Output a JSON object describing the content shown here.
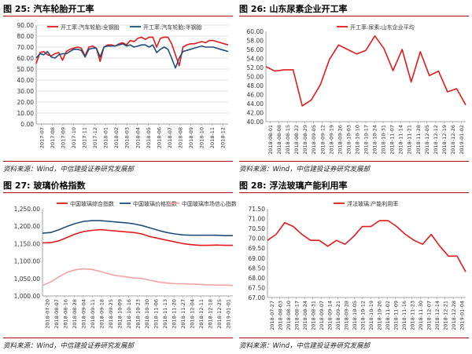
{
  "figures": [
    {
      "number": "图 25:",
      "title": "汽车轮胎开工率",
      "source": "资料来源：Wind，中信建投证券研究发展部"
    },
    {
      "number": "图 26:",
      "title": "山东尿素企业开工率",
      "source": "资料来源：Wind，中信建投证券研究发展部"
    },
    {
      "number": "图 27:",
      "title": "玻璃价格指数",
      "source": "资料来源：Wind，中信建投证券研究发展部"
    },
    {
      "number": "图 28:",
      "title": "浮法玻璃产能利用率",
      "source": "资料来源：Wind，中信建投证券研究发展部"
    }
  ],
  "colors": {
    "red": "#e31a1c",
    "navy": "#1f4e79",
    "pink": "#f4a3a3",
    "grid": "#d9d9d9",
    "rule": "#b8000c"
  },
  "chart_data": [
    {
      "type": "line",
      "title": "",
      "ylim": [
        0,
        90
      ],
      "yticks": [
        "0.00",
        "10.00",
        "20.00",
        "30.00",
        "40.00",
        "50.00",
        "60.00",
        "70.00",
        "80.00",
        "90.00"
      ],
      "ytick_values": [
        0,
        10,
        20,
        30,
        40,
        50,
        60,
        70,
        80,
        90
      ],
      "xticks": [
        "2017-07",
        "2017-08",
        "2017-09",
        "2017-10",
        "2017-11",
        "2017-12",
        "2018-01",
        "2018-02",
        "2018-03",
        "2018-04",
        "2018-05",
        "2018-06",
        "2018-07",
        "2018-08",
        "2018-09",
        "2018-10",
        "2018-11",
        "2018-12"
      ],
      "legend": "top",
      "grid": true,
      "series": [
        {
          "name": "开工率:汽车轮胎:全钢胎",
          "color": "#e31a1c",
          "values": [
            55,
            65,
            66,
            63,
            62,
            64,
            65,
            58,
            66,
            68,
            69,
            70,
            69,
            62,
            70,
            71,
            69,
            57,
            70,
            72,
            72,
            71,
            73,
            74,
            72,
            76,
            75,
            78,
            79,
            77,
            79,
            79,
            70,
            78,
            79,
            79,
            73,
            63,
            53,
            70,
            72,
            73,
            73,
            74,
            75,
            74,
            76,
            76,
            75,
            74,
            73,
            72
          ]
        },
        {
          "name": "开工率:汽车轮胎:半钢胎",
          "color": "#1f4e79",
          "values": [
            60,
            64,
            63,
            66,
            61,
            60,
            63,
            64,
            64,
            66,
            68,
            68,
            67,
            61,
            68,
            69,
            69,
            61,
            70,
            71,
            71,
            71,
            72,
            73,
            71,
            72,
            70,
            71,
            72,
            72,
            70,
            72,
            65,
            68,
            70,
            68,
            60,
            51,
            60,
            66,
            67,
            68,
            69,
            70,
            71,
            70,
            70,
            70,
            69,
            68,
            67,
            66
          ]
        }
      ]
    },
    {
      "type": "line",
      "title": "",
      "ylim": [
        40,
        60
      ],
      "yticks": [
        "40.00",
        "42.00",
        "44.00",
        "46.00",
        "48.00",
        "50.00",
        "52.00",
        "54.00",
        "56.00",
        "58.00",
        "60.00"
      ],
      "ytick_values": [
        40,
        42,
        44,
        46,
        48,
        50,
        52,
        54,
        56,
        58,
        60
      ],
      "xticks": [
        "2018-08-01",
        "2018-08-08",
        "2018-08-15",
        "2018-08-22",
        "2018-08-29",
        "2018-09-05",
        "2018-09-12",
        "2018-09-19",
        "2018-09-26",
        "2018-10-03",
        "2018-10-10",
        "2018-10-17",
        "2018-10-24",
        "2018-10-31",
        "2018-11-07",
        "2018-11-14",
        "2018-11-21",
        "2018-11-28",
        "2018-12-05",
        "2018-12-12",
        "2018-12-19",
        "2018-12-26",
        "2019-01-02"
      ],
      "legend": "top",
      "grid": false,
      "series": [
        {
          "name": "开工率:尿素:山东企业平均",
          "color": "#e31a1c",
          "values": [
            52.2,
            51.2,
            51.5,
            51.5,
            43.5,
            44.8,
            48.2,
            53.8,
            57.0,
            56.0,
            55.0,
            55.8,
            59.0,
            56.2,
            51.3,
            56.0,
            48.8,
            55.5,
            50.2,
            51.2,
            46.6,
            47.3,
            43.7
          ]
        }
      ]
    },
    {
      "type": "line",
      "title": "",
      "ylim": [
        1000,
        1250
      ],
      "yticks": [
        "1,000.00",
        "1,050.00",
        "1,100.00",
        "1,150.00",
        "1,200.00",
        "1,250.00"
      ],
      "ytick_values": [
        1000,
        1050,
        1100,
        1150,
        1200,
        1250
      ],
      "xticks": [
        "2018-07-20",
        "2018-08-07",
        "2018-08-16",
        "2018-08-28",
        "2018-09-04",
        "2018-09-11",
        "2018-09-18",
        "2018-09-25",
        "2018-10-09",
        "2018-10-16",
        "2018-10-23",
        "2018-10-30",
        "2018-11-06",
        "2018-11-13",
        "2018-11-20",
        "2018-11-27",
        "2018-12-04",
        "2018-12-11",
        "2018-12-18",
        "2018-12-25",
        "2019-01-01"
      ],
      "legend": "top",
      "grid": false,
      "series": [
        {
          "name": "中国玻璃综合指数",
          "color": "#e31a1c",
          "values": [
            1152,
            1153,
            1158,
            1168,
            1178,
            1185,
            1188,
            1190,
            1188,
            1186,
            1184,
            1182,
            1178,
            1170,
            1165,
            1160,
            1155,
            1150,
            1147,
            1145,
            1145,
            1146,
            1145,
            1145
          ]
        },
        {
          "name": "中国玻璃价格指数",
          "color": "#1f4e79",
          "values": [
            1180,
            1182,
            1190,
            1200,
            1208,
            1214,
            1216,
            1216,
            1214,
            1212,
            1210,
            1207,
            1202,
            1195,
            1188,
            1182,
            1178,
            1175,
            1174,
            1174,
            1174,
            1174,
            1173,
            1173
          ]
        },
        {
          "name": "中国玻璃市场信心指数",
          "color": "#f4a3a3",
          "values": [
            1030,
            1040,
            1055,
            1068,
            1075,
            1078,
            1076,
            1070,
            1063,
            1058,
            1055,
            1052,
            1050,
            1045,
            1040,
            1037,
            1035,
            1035,
            1034,
            1033,
            1032,
            1031,
            1031,
            1030
          ]
        }
      ]
    },
    {
      "type": "line",
      "title": "",
      "ylim": [
        67.0,
        71.5
      ],
      "yticks": [
        "67.00",
        "67.50",
        "68.00",
        "68.50",
        "69.00",
        "69.50",
        "70.00",
        "70.50",
        "71.00",
        "71.50"
      ],
      "ytick_values": [
        67.0,
        67.5,
        68.0,
        68.5,
        69.0,
        69.5,
        70.0,
        70.5,
        71.0,
        71.5
      ],
      "xticks": [
        "2018-07-27",
        "2018-08-03",
        "2018-08-10",
        "2018-08-17",
        "2018-08-24",
        "2018-08-31",
        "2018-09-07",
        "2018-09-14",
        "2018-09-21",
        "2018-09-28",
        "2018-10-05",
        "2018-10-12",
        "2018-10-19",
        "2018-10-26",
        "2018-11-02",
        "2018-11-09",
        "2018-11-16",
        "2018-11-23",
        "2018-11-30",
        "2018-12-07",
        "2018-12-14",
        "2018-12-21",
        "2018-12-28",
        "2019-01-04"
      ],
      "legend": "top",
      "grid": false,
      "series": [
        {
          "name": "浮法玻璃:产能利用率",
          "color": "#e31a1c",
          "values": [
            69.9,
            70.2,
            70.8,
            70.6,
            70.2,
            69.9,
            69.9,
            69.6,
            69.9,
            69.7,
            70.1,
            70.6,
            70.6,
            70.9,
            70.9,
            70.6,
            70.2,
            69.9,
            69.7,
            70.2,
            69.6,
            69.1,
            69.1,
            68.3
          ]
        }
      ]
    }
  ]
}
